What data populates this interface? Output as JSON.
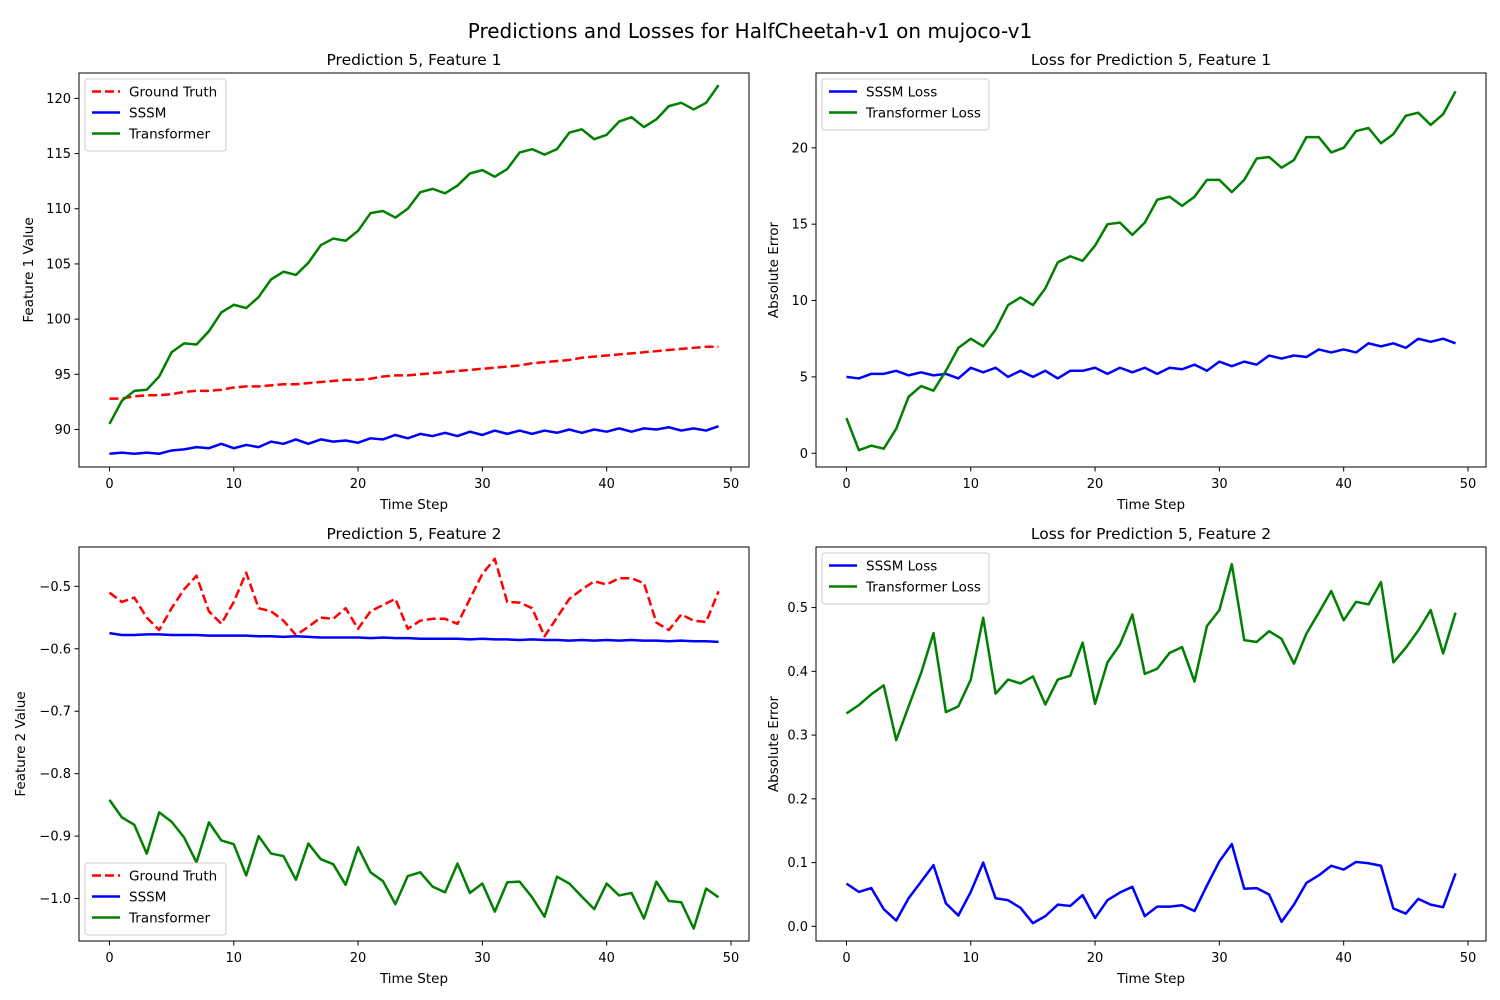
{
  "figure": {
    "title": "Predictions and Losses for HalfCheetah-v1 on mujoco-v1"
  },
  "chart_data": [
    {
      "type": "line",
      "title": "Prediction 5, Feature 1",
      "xlabel": "Time Step",
      "ylabel": "Feature 1 Value",
      "xlim": [
        -2.45,
        51.45
      ],
      "ylim": [
        86.6,
        122.3
      ],
      "xticks": [
        0,
        10,
        20,
        30,
        40,
        50
      ],
      "yticks": [
        90,
        95,
        100,
        105,
        110,
        115,
        120
      ],
      "legend_position": "upper left",
      "x": [
        0,
        1,
        2,
        3,
        4,
        5,
        6,
        7,
        8,
        9,
        10,
        11,
        12,
        13,
        14,
        15,
        16,
        17,
        18,
        19,
        20,
        21,
        22,
        23,
        24,
        25,
        26,
        27,
        28,
        29,
        30,
        31,
        32,
        33,
        34,
        35,
        36,
        37,
        38,
        39,
        40,
        41,
        42,
        43,
        44,
        45,
        46,
        47,
        48,
        49
      ],
      "series": [
        {
          "name": "Ground Truth",
          "color": "#ff0000",
          "dashed": true,
          "values": [
            92.8,
            92.8,
            93.0,
            93.1,
            93.1,
            93.2,
            93.4,
            93.5,
            93.5,
            93.6,
            93.8,
            93.9,
            93.9,
            94.0,
            94.1,
            94.1,
            94.2,
            94.3,
            94.4,
            94.5,
            94.5,
            94.6,
            94.8,
            94.9,
            94.9,
            95.0,
            95.1,
            95.2,
            95.3,
            95.4,
            95.5,
            95.6,
            95.7,
            95.8,
            96.0,
            96.1,
            96.2,
            96.3,
            96.5,
            96.6,
            96.7,
            96.8,
            96.9,
            97.0,
            97.1,
            97.2,
            97.3,
            97.4,
            97.5,
            97.5
          ]
        },
        {
          "name": "SSSM",
          "color": "#0000ff",
          "dashed": false,
          "values": [
            87.8,
            87.9,
            87.8,
            87.9,
            87.8,
            88.1,
            88.2,
            88.4,
            88.3,
            88.7,
            88.3,
            88.6,
            88.4,
            88.9,
            88.7,
            89.1,
            88.7,
            89.1,
            88.9,
            89.0,
            88.8,
            89.2,
            89.1,
            89.5,
            89.2,
            89.6,
            89.4,
            89.7,
            89.4,
            89.8,
            89.5,
            89.9,
            89.6,
            89.9,
            89.6,
            89.9,
            89.7,
            90.0,
            89.7,
            90.0,
            89.8,
            90.1,
            89.8,
            90.1,
            90.0,
            90.2,
            89.9,
            90.1,
            89.9,
            90.3
          ]
        },
        {
          "name": "Transformer",
          "color": "#008000",
          "dashed": false,
          "values": [
            90.5,
            92.6,
            93.5,
            93.6,
            94.8,
            97.0,
            97.8,
            97.7,
            98.9,
            100.6,
            101.3,
            101.0,
            102.0,
            103.6,
            104.3,
            104.0,
            105.1,
            106.7,
            107.3,
            107.1,
            108.0,
            109.6,
            109.8,
            109.2,
            110.0,
            111.5,
            111.8,
            111.4,
            112.1,
            113.2,
            113.5,
            112.9,
            113.6,
            115.1,
            115.4,
            114.9,
            115.4,
            116.9,
            117.2,
            116.3,
            116.7,
            117.9,
            118.3,
            117.4,
            118.1,
            119.3,
            119.6,
            119.0,
            119.6,
            121.2
          ]
        }
      ]
    },
    {
      "type": "line",
      "title": "Loss for Prediction 5, Feature 1",
      "xlabel": "Time Step",
      "ylabel": "Absolute Error",
      "xlim": [
        -2.45,
        51.45
      ],
      "ylim": [
        -0.9,
        24.9
      ],
      "xticks": [
        0,
        10,
        20,
        30,
        40,
        50
      ],
      "yticks": [
        0,
        5,
        10,
        15,
        20
      ],
      "legend_position": "upper left",
      "x": [
        0,
        1,
        2,
        3,
        4,
        5,
        6,
        7,
        8,
        9,
        10,
        11,
        12,
        13,
        14,
        15,
        16,
        17,
        18,
        19,
        20,
        21,
        22,
        23,
        24,
        25,
        26,
        27,
        28,
        29,
        30,
        31,
        32,
        33,
        34,
        35,
        36,
        37,
        38,
        39,
        40,
        41,
        42,
        43,
        44,
        45,
        46,
        47,
        48,
        49
      ],
      "series": [
        {
          "name": "SSSM Loss",
          "color": "#0000ff",
          "dashed": false,
          "values": [
            5.0,
            4.9,
            5.2,
            5.2,
            5.4,
            5.1,
            5.3,
            5.1,
            5.2,
            4.9,
            5.6,
            5.3,
            5.6,
            5.0,
            5.4,
            5.0,
            5.4,
            4.9,
            5.4,
            5.4,
            5.6,
            5.2,
            5.6,
            5.3,
            5.6,
            5.2,
            5.6,
            5.5,
            5.8,
            5.4,
            6.0,
            5.7,
            6.0,
            5.8,
            6.4,
            6.2,
            6.4,
            6.3,
            6.8,
            6.6,
            6.8,
            6.6,
            7.2,
            7.0,
            7.2,
            6.9,
            7.5,
            7.3,
            7.5,
            7.2
          ]
        },
        {
          "name": "Transformer Loss",
          "color": "#008000",
          "dashed": false,
          "values": [
            2.3,
            0.2,
            0.5,
            0.3,
            1.6,
            3.7,
            4.4,
            4.1,
            5.4,
            6.9,
            7.5,
            7.0,
            8.1,
            9.7,
            10.2,
            9.7,
            10.8,
            12.5,
            12.9,
            12.6,
            13.6,
            15.0,
            15.1,
            14.3,
            15.1,
            16.6,
            16.8,
            16.2,
            16.8,
            17.9,
            17.9,
            17.1,
            17.9,
            19.3,
            19.4,
            18.7,
            19.2,
            20.7,
            20.7,
            19.7,
            20.0,
            21.1,
            21.3,
            20.3,
            20.9,
            22.1,
            22.3,
            21.5,
            22.2,
            23.7
          ]
        }
      ]
    },
    {
      "type": "line",
      "title": "Prediction 5, Feature 2",
      "xlabel": "Time Step",
      "ylabel": "Feature 2 Value",
      "xlim": [
        -2.45,
        51.45
      ],
      "ylim": [
        -1.068,
        -0.437
      ],
      "xticks": [
        0,
        10,
        20,
        30,
        40,
        50
      ],
      "yticks": [
        -1.0,
        -0.9,
        -0.8,
        -0.7,
        -0.6,
        -0.5
      ],
      "ytick_labels": [
        "−1.0",
        "−0.9",
        "−0.8",
        "−0.7",
        "−0.6",
        "−0.5"
      ],
      "legend_position": "lower left",
      "x": [
        0,
        1,
        2,
        3,
        4,
        5,
        6,
        7,
        8,
        9,
        10,
        11,
        12,
        13,
        14,
        15,
        16,
        17,
        18,
        19,
        20,
        21,
        22,
        23,
        24,
        25,
        26,
        27,
        28,
        29,
        30,
        31,
        32,
        33,
        34,
        35,
        36,
        37,
        38,
        39,
        40,
        41,
        42,
        43,
        44,
        45,
        46,
        47,
        48,
        49
      ],
      "series": [
        {
          "name": "Ground Truth",
          "color": "#ff0000",
          "dashed": true,
          "values": [
            -0.51,
            -0.525,
            -0.518,
            -0.55,
            -0.57,
            -0.535,
            -0.505,
            -0.483,
            -0.54,
            -0.56,
            -0.525,
            -0.478,
            -0.535,
            -0.54,
            -0.555,
            -0.578,
            -0.565,
            -0.55,
            -0.552,
            -0.535,
            -0.568,
            -0.54,
            -0.53,
            -0.52,
            -0.568,
            -0.555,
            -0.552,
            -0.552,
            -0.56,
            -0.52,
            -0.48,
            -0.456,
            -0.525,
            -0.526,
            -0.535,
            -0.58,
            -0.55,
            -0.52,
            -0.505,
            -0.492,
            -0.497,
            -0.487,
            -0.487,
            -0.495,
            -0.558,
            -0.57,
            -0.545,
            -0.555,
            -0.557,
            -0.508
          ]
        },
        {
          "name": "SSSM",
          "color": "#0000ff",
          "dashed": false,
          "values": [
            -0.575,
            -0.578,
            -0.578,
            -0.577,
            -0.577,
            -0.578,
            -0.578,
            -0.578,
            -0.579,
            -0.579,
            -0.579,
            -0.579,
            -0.58,
            -0.58,
            -0.581,
            -0.58,
            -0.581,
            -0.582,
            -0.582,
            -0.582,
            -0.582,
            -0.583,
            -0.582,
            -0.583,
            -0.583,
            -0.584,
            -0.584,
            -0.584,
            -0.584,
            -0.585,
            -0.584,
            -0.585,
            -0.585,
            -0.586,
            -0.585,
            -0.586,
            -0.586,
            -0.587,
            -0.586,
            -0.587,
            -0.586,
            -0.587,
            -0.586,
            -0.587,
            -0.587,
            -0.588,
            -0.587,
            -0.588,
            -0.588,
            -0.589
          ]
        },
        {
          "name": "Transformer",
          "color": "#008000",
          "dashed": false,
          "values": [
            -0.842,
            -0.87,
            -0.882,
            -0.928,
            -0.862,
            -0.877,
            -0.902,
            -0.942,
            -0.878,
            -0.907,
            -0.913,
            -0.963,
            -0.9,
            -0.928,
            -0.932,
            -0.97,
            -0.912,
            -0.937,
            -0.945,
            -0.978,
            -0.918,
            -0.958,
            -0.972,
            -1.009,
            -0.964,
            -0.958,
            -0.981,
            -0.99,
            -0.944,
            -0.991,
            -0.976,
            -1.021,
            -0.974,
            -0.973,
            -0.998,
            -1.029,
            -0.965,
            -0.976,
            -0.997,
            -1.017,
            -0.976,
            -0.995,
            -0.991,
            -1.032,
            -0.973,
            -1.004,
            -1.006,
            -1.048,
            -0.984,
            -0.998
          ]
        }
      ]
    },
    {
      "type": "line",
      "title": "Loss for Prediction 5, Feature 2",
      "xlabel": "Time Step",
      "ylabel": "Absolute Error",
      "xlim": [
        -2.45,
        51.45
      ],
      "ylim": [
        -0.023,
        0.595
      ],
      "xticks": [
        0,
        10,
        20,
        30,
        40,
        50
      ],
      "yticks": [
        0.0,
        0.1,
        0.2,
        0.3,
        0.4,
        0.5
      ],
      "ytick_labels": [
        "0.0",
        "0.1",
        "0.2",
        "0.3",
        "0.4",
        "0.5"
      ],
      "legend_position": "upper left",
      "x": [
        0,
        1,
        2,
        3,
        4,
        5,
        6,
        7,
        8,
        9,
        10,
        11,
        12,
        13,
        14,
        15,
        16,
        17,
        18,
        19,
        20,
        21,
        22,
        23,
        24,
        25,
        26,
        27,
        28,
        29,
        30,
        31,
        32,
        33,
        34,
        35,
        36,
        37,
        38,
        39,
        40,
        41,
        42,
        43,
        44,
        45,
        46,
        47,
        48,
        49
      ],
      "series": [
        {
          "name": "SSSM Loss",
          "color": "#0000ff",
          "dashed": false,
          "values": [
            0.067,
            0.054,
            0.06,
            0.027,
            0.009,
            0.044,
            0.07,
            0.096,
            0.036,
            0.017,
            0.054,
            0.1,
            0.044,
            0.041,
            0.029,
            0.005,
            0.016,
            0.034,
            0.032,
            0.049,
            0.013,
            0.041,
            0.053,
            0.062,
            0.016,
            0.031,
            0.031,
            0.033,
            0.024,
            0.064,
            0.102,
            0.129,
            0.059,
            0.06,
            0.05,
            0.007,
            0.034,
            0.068,
            0.08,
            0.095,
            0.089,
            0.101,
            0.099,
            0.095,
            0.028,
            0.02,
            0.043,
            0.034,
            0.03,
            0.083
          ]
        },
        {
          "name": "Transformer Loss",
          "color": "#008000",
          "dashed": false,
          "values": [
            0.334,
            0.347,
            0.364,
            0.378,
            0.292,
            0.345,
            0.397,
            0.46,
            0.336,
            0.345,
            0.387,
            0.484,
            0.365,
            0.387,
            0.381,
            0.392,
            0.348,
            0.387,
            0.393,
            0.445,
            0.349,
            0.414,
            0.442,
            0.489,
            0.396,
            0.404,
            0.429,
            0.438,
            0.384,
            0.471,
            0.496,
            0.568,
            0.449,
            0.446,
            0.463,
            0.451,
            0.412,
            0.459,
            0.492,
            0.526,
            0.48,
            0.509,
            0.505,
            0.54,
            0.414,
            0.437,
            0.464,
            0.496,
            0.428,
            0.492
          ]
        }
      ]
    }
  ]
}
